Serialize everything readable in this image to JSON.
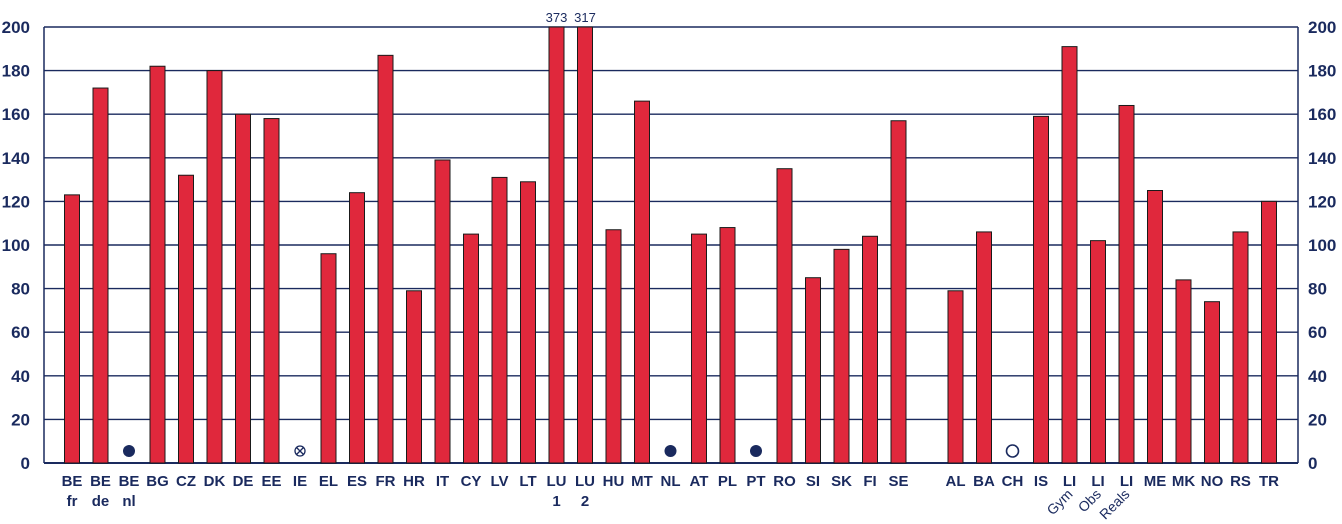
{
  "chart_data": {
    "type": "bar",
    "ylim": [
      0,
      200
    ],
    "yticks": [
      "0",
      "20",
      "40",
      "60",
      "80",
      "100",
      "120",
      "140",
      "160",
      "180",
      "200"
    ],
    "grid": true,
    "colors": {
      "bar": "#e0283c",
      "bar_stroke": "#1a1a1a",
      "axis": "#1a2a5e",
      "marker": "#1a2a5e"
    },
    "categories": [
      {
        "label": "BE",
        "sub": "fr",
        "value": 123
      },
      {
        "label": "BE",
        "sub": "de",
        "value": 172
      },
      {
        "label": "BE",
        "sub": "nl",
        "value": null,
        "marker": "filled-circle"
      },
      {
        "label": "BG",
        "sub": "",
        "value": 182
      },
      {
        "label": "CZ",
        "sub": "",
        "value": 132
      },
      {
        "label": "DK",
        "sub": "",
        "value": 180
      },
      {
        "label": "DE",
        "sub": "",
        "value": 160
      },
      {
        "label": "EE",
        "sub": "",
        "value": 158
      },
      {
        "label": "IE",
        "sub": "",
        "value": null,
        "marker": "crossed-circle"
      },
      {
        "label": "EL",
        "sub": "",
        "value": 96
      },
      {
        "label": "ES",
        "sub": "",
        "value": 124
      },
      {
        "label": "FR",
        "sub": "",
        "value": 187
      },
      {
        "label": "HR",
        "sub": "",
        "value": 79
      },
      {
        "label": "IT",
        "sub": "",
        "value": 139
      },
      {
        "label": "CY",
        "sub": "",
        "value": 105
      },
      {
        "label": "LV",
        "sub": "",
        "value": 131
      },
      {
        "label": "LT",
        "sub": "",
        "value": 129
      },
      {
        "label": "LU",
        "sub": "1",
        "value": 373,
        "data_label": "373"
      },
      {
        "label": "LU",
        "sub": "2",
        "value": 317,
        "data_label": "317"
      },
      {
        "label": "HU",
        "sub": "",
        "value": 107
      },
      {
        "label": "MT",
        "sub": "",
        "value": 166
      },
      {
        "label": "NL",
        "sub": "",
        "value": null,
        "marker": "filled-circle"
      },
      {
        "label": "AT",
        "sub": "",
        "value": 105
      },
      {
        "label": "PL",
        "sub": "",
        "value": 108
      },
      {
        "label": "PT",
        "sub": "",
        "value": null,
        "marker": "filled-circle"
      },
      {
        "label": "RO",
        "sub": "",
        "value": 135
      },
      {
        "label": "SI",
        "sub": "",
        "value": 85
      },
      {
        "label": "SK",
        "sub": "",
        "value": 98
      },
      {
        "label": "FI",
        "sub": "",
        "value": 104
      },
      {
        "label": "SE",
        "sub": "",
        "value": 157
      },
      {
        "gap": true
      },
      {
        "label": "AL",
        "sub": "",
        "value": 79
      },
      {
        "label": "BA",
        "sub": "",
        "value": 106
      },
      {
        "label": "CH",
        "sub": "",
        "value": null,
        "marker": "open-circle"
      },
      {
        "label": "IS",
        "sub": "",
        "value": 159
      },
      {
        "label": "LI",
        "sub": "Gym",
        "value": 191,
        "sub_rotated": true
      },
      {
        "label": "LI",
        "sub": "Obs",
        "value": 102,
        "sub_rotated": true
      },
      {
        "label": "LI",
        "sub": "Reals",
        "value": 164,
        "sub_rotated": true
      },
      {
        "label": "ME",
        "sub": "",
        "value": 125
      },
      {
        "label": "MK",
        "sub": "",
        "value": 84
      },
      {
        "label": "NO",
        "sub": "",
        "value": 74
      },
      {
        "label": "RS",
        "sub": "",
        "value": 106
      },
      {
        "label": "TR",
        "sub": "",
        "value": 120
      }
    ]
  }
}
